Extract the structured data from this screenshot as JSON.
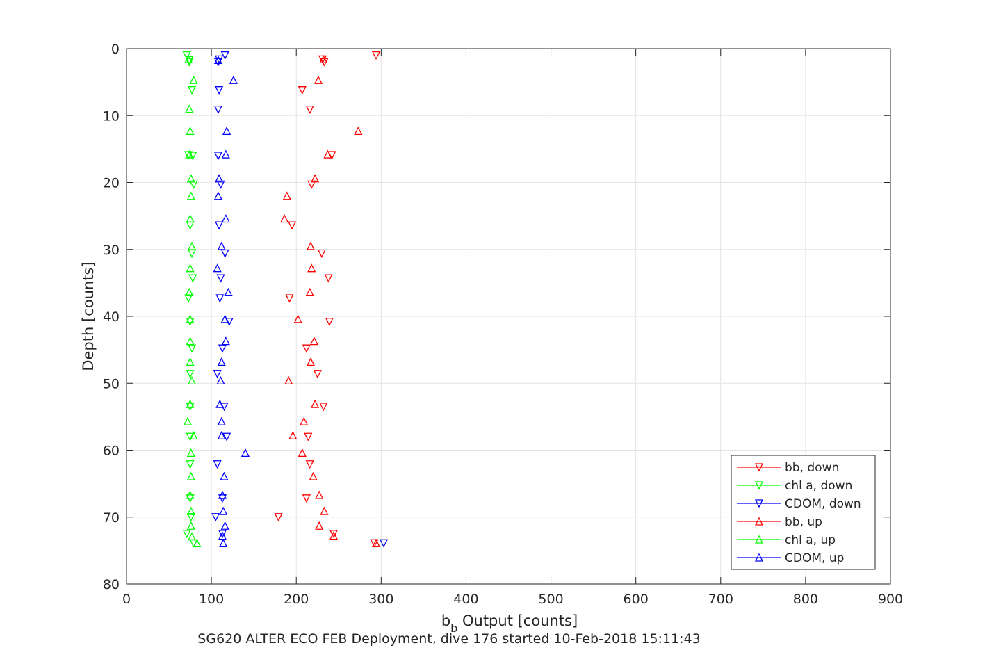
{
  "chart_data": {
    "type": "scatter",
    "xlabel_main": "b",
    "xlabel_sub": "b",
    "xlabel_rest": " Output [counts]",
    "ylabel": "Depth [counts]",
    "caption": "SG620 ALTER ECO FEB Deployment, dive 176 started 10-Feb-2018 15:11:43",
    "xlim": [
      0,
      900
    ],
    "ylim": [
      0,
      80
    ],
    "y_reversed": true,
    "x_ticks": [
      "0",
      "100",
      "200",
      "300",
      "400",
      "500",
      "600",
      "700",
      "800",
      "900"
    ],
    "y_ticks": [
      "0",
      "10",
      "20",
      "30",
      "40",
      "50",
      "60",
      "70",
      "80"
    ],
    "grid": true,
    "legend_position": "bottom-right",
    "series": [
      {
        "name": "bb, down",
        "color": "#ff0000",
        "marker": "triangle-down",
        "points": [
          [
            294,
            1
          ],
          [
            231,
            1.6
          ],
          [
            233,
            2
          ],
          [
            207,
            6.2
          ],
          [
            216,
            9.1
          ],
          [
            242,
            15.9
          ],
          [
            218,
            20.3
          ],
          [
            195,
            26.4
          ],
          [
            230,
            30.6
          ],
          [
            238,
            34.3
          ],
          [
            192,
            37.3
          ],
          [
            239,
            40.8
          ],
          [
            212,
            44.8
          ],
          [
            225,
            48.6
          ],
          [
            232,
            53.5
          ],
          [
            214,
            58
          ],
          [
            216,
            62.1
          ],
          [
            212,
            67.2
          ],
          [
            179,
            70
          ],
          [
            244,
            72.5
          ],
          [
            292,
            73.9
          ]
        ]
      },
      {
        "name": "chl a, down",
        "color": "#00ff00",
        "marker": "triangle-down",
        "points": [
          [
            71,
            1
          ],
          [
            74,
            1.7
          ],
          [
            74,
            2
          ],
          [
            77,
            6.2
          ],
          [
            73,
            15.9
          ],
          [
            78,
            16
          ],
          [
            79,
            20.3
          ],
          [
            75,
            26.4
          ],
          [
            77,
            30.6
          ],
          [
            78,
            34.3
          ],
          [
            73,
            37.3
          ],
          [
            75,
            40.8
          ],
          [
            77,
            44.8
          ],
          [
            75,
            48.6
          ],
          [
            75,
            53.5
          ],
          [
            75,
            58
          ],
          [
            75,
            62.1
          ],
          [
            75,
            67.2
          ],
          [
            76,
            70
          ],
          [
            71,
            72.5
          ],
          [
            79,
            73.9
          ]
        ]
      },
      {
        "name": "CDOM, down",
        "color": "#0000ff",
        "marker": "triangle-down",
        "points": [
          [
            116,
            1
          ],
          [
            109,
            1.6
          ],
          [
            108,
            2
          ],
          [
            109,
            6.2
          ],
          [
            108,
            9.1
          ],
          [
            108,
            16
          ],
          [
            111,
            20.3
          ],
          [
            109,
            26.4
          ],
          [
            116,
            30.6
          ],
          [
            111,
            34.3
          ],
          [
            110,
            37.3
          ],
          [
            121,
            40.8
          ],
          [
            113,
            44.8
          ],
          [
            107,
            48.6
          ],
          [
            115,
            53.5
          ],
          [
            118,
            58
          ],
          [
            107,
            62.1
          ],
          [
            113,
            67.2
          ],
          [
            105,
            70
          ],
          [
            113,
            72.5
          ],
          [
            303,
            73.9
          ]
        ]
      },
      {
        "name": "bb, up",
        "color": "#ff0000",
        "marker": "triangle-up",
        "points": [
          [
            232,
            1.6
          ],
          [
            226,
            4.7
          ],
          [
            273,
            12.3
          ],
          [
            237,
            15.8
          ],
          [
            222,
            19.4
          ],
          [
            189,
            22
          ],
          [
            186,
            25.4
          ],
          [
            217,
            29.5
          ],
          [
            218,
            32.8
          ],
          [
            216,
            36.4
          ],
          [
            202,
            40.4
          ],
          [
            221,
            43.7
          ],
          [
            217,
            46.8
          ],
          [
            191,
            49.6
          ],
          [
            222,
            53.1
          ],
          [
            209,
            55.7
          ],
          [
            196,
            57.8
          ],
          [
            207,
            60.4
          ],
          [
            220,
            63.9
          ],
          [
            227,
            66.7
          ],
          [
            233,
            69.1
          ],
          [
            227,
            71.3
          ],
          [
            244,
            72.8
          ],
          [
            294,
            73.9
          ]
        ]
      },
      {
        "name": "chl a, up",
        "color": "#00ff00",
        "marker": "triangle-up",
        "points": [
          [
            73,
            1.6
          ],
          [
            79,
            4.7
          ],
          [
            74,
            9
          ],
          [
            75,
            12.3
          ],
          [
            74,
            15.8
          ],
          [
            76,
            19.4
          ],
          [
            76,
            22
          ],
          [
            75,
            25.4
          ],
          [
            77,
            29.5
          ],
          [
            75,
            32.8
          ],
          [
            74,
            36.4
          ],
          [
            75,
            40.4
          ],
          [
            75,
            43.7
          ],
          [
            75,
            46.8
          ],
          [
            77,
            49.6
          ],
          [
            75,
            53.1
          ],
          [
            72,
            55.7
          ],
          [
            79,
            57.8
          ],
          [
            76,
            60.4
          ],
          [
            76,
            63.9
          ],
          [
            75,
            66.7
          ],
          [
            76,
            69.1
          ],
          [
            76,
            71.3
          ],
          [
            77,
            72.9
          ],
          [
            83,
            73.9
          ]
        ]
      },
      {
        "name": "CDOM, up",
        "color": "#0000ff",
        "marker": "triangle-up",
        "points": [
          [
            108,
            1.7
          ],
          [
            126,
            4.7
          ],
          [
            118,
            12.3
          ],
          [
            117,
            15.8
          ],
          [
            109,
            19.4
          ],
          [
            108,
            22
          ],
          [
            117,
            25.4
          ],
          [
            112,
            29.5
          ],
          [
            107,
            32.8
          ],
          [
            120,
            36.4
          ],
          [
            116,
            40.4
          ],
          [
            117,
            43.7
          ],
          [
            112,
            46.8
          ],
          [
            111,
            49.6
          ],
          [
            110,
            53.1
          ],
          [
            112,
            55.7
          ],
          [
            112,
            57.8
          ],
          [
            140,
            60.4
          ],
          [
            115,
            63.9
          ],
          [
            113,
            66.7
          ],
          [
            114,
            69.1
          ],
          [
            116,
            71.3
          ],
          [
            113,
            72.8
          ],
          [
            114,
            73.9
          ]
        ]
      }
    ]
  }
}
